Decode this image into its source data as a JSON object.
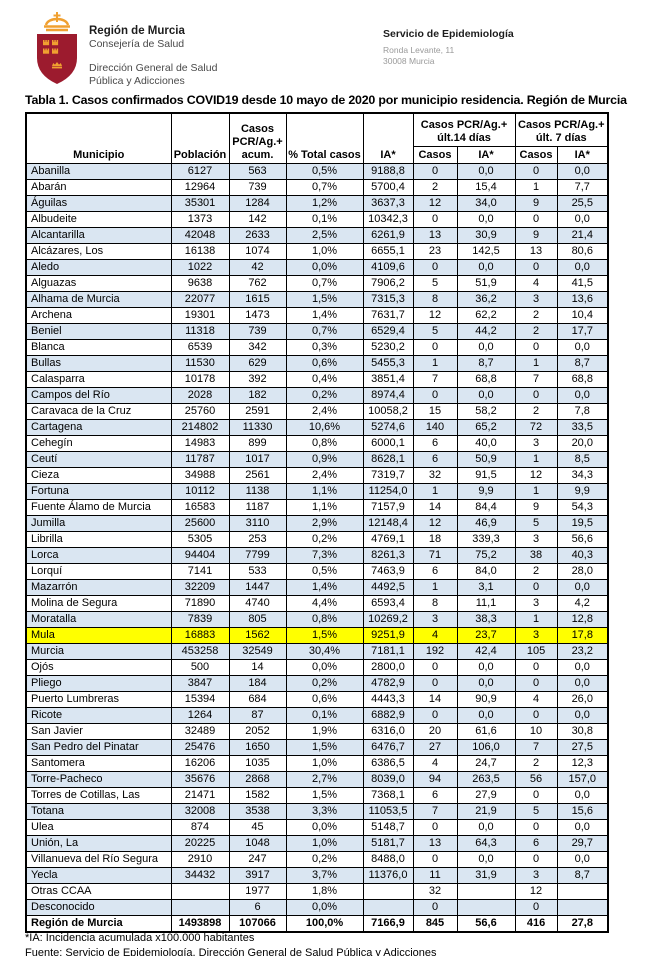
{
  "letterhead": {
    "org": {
      "name": "Región de Murcia",
      "dept": "Consejería de Salud",
      "sub1": "Dirección General de Salud",
      "sub2": "Pública y Adicciones"
    },
    "service": {
      "name": "Servicio de Epidemiología",
      "address1": "Ronda Levante, 11",
      "address2": "30008 Murcia"
    }
  },
  "title": "Tabla 1. Casos confirmados COVID19 desde 10 mayo de 2020 por municipio residencia. Región de Murcia",
  "table": {
    "col_headers": {
      "municipio": "Municipio",
      "poblacion": "Población",
      "casos_acum_l1": "Casos",
      "casos_acum_l2": "PCR/Ag.+",
      "casos_acum_l3": "acum.",
      "pct_total": "% Total casos",
      "ia": "IA*",
      "group_14": "Casos PCR/Ag.+ últ.14 días",
      "group_7": "Casos PCR/Ag.+ últ. 7 días",
      "casos": "Casos",
      "ia_sub": "IA*"
    },
    "rows": [
      [
        "Abanilla",
        "6127",
        "563",
        "0,5%",
        "9188,8",
        "0",
        "0,0",
        "0",
        "0,0"
      ],
      [
        "Abarán",
        "12964",
        "739",
        "0,7%",
        "5700,4",
        "2",
        "15,4",
        "1",
        "7,7"
      ],
      [
        "Águilas",
        "35301",
        "1284",
        "1,2%",
        "3637,3",
        "12",
        "34,0",
        "9",
        "25,5"
      ],
      [
        "Albudeite",
        "1373",
        "142",
        "0,1%",
        "10342,3",
        "0",
        "0,0",
        "0",
        "0,0"
      ],
      [
        "Alcantarilla",
        "42048",
        "2633",
        "2,5%",
        "6261,9",
        "13",
        "30,9",
        "9",
        "21,4"
      ],
      [
        "Alcázares, Los",
        "16138",
        "1074",
        "1,0%",
        "6655,1",
        "23",
        "142,5",
        "13",
        "80,6"
      ],
      [
        "Aledo",
        "1022",
        "42",
        "0,0%",
        "4109,6",
        "0",
        "0,0",
        "0",
        "0,0"
      ],
      [
        "Alguazas",
        "9638",
        "762",
        "0,7%",
        "7906,2",
        "5",
        "51,9",
        "4",
        "41,5"
      ],
      [
        "Alhama de Murcia",
        "22077",
        "1615",
        "1,5%",
        "7315,3",
        "8",
        "36,2",
        "3",
        "13,6"
      ],
      [
        "Archena",
        "19301",
        "1473",
        "1,4%",
        "7631,7",
        "12",
        "62,2",
        "2",
        "10,4"
      ],
      [
        "Beniel",
        "11318",
        "739",
        "0,7%",
        "6529,4",
        "5",
        "44,2",
        "2",
        "17,7"
      ],
      [
        "Blanca",
        "6539",
        "342",
        "0,3%",
        "5230,2",
        "0",
        "0,0",
        "0",
        "0,0"
      ],
      [
        "Bullas",
        "11530",
        "629",
        "0,6%",
        "5455,3",
        "1",
        "8,7",
        "1",
        "8,7"
      ],
      [
        "Calasparra",
        "10178",
        "392",
        "0,4%",
        "3851,4",
        "7",
        "68,8",
        "7",
        "68,8"
      ],
      [
        "Campos del Río",
        "2028",
        "182",
        "0,2%",
        "8974,4",
        "0",
        "0,0",
        "0",
        "0,0"
      ],
      [
        "Caravaca de la Cruz",
        "25760",
        "2591",
        "2,4%",
        "10058,2",
        "15",
        "58,2",
        "2",
        "7,8"
      ],
      [
        "Cartagena",
        "214802",
        "11330",
        "10,6%",
        "5274,6",
        "140",
        "65,2",
        "72",
        "33,5"
      ],
      [
        "Cehegín",
        "14983",
        "899",
        "0,8%",
        "6000,1",
        "6",
        "40,0",
        "3",
        "20,0"
      ],
      [
        "Ceutí",
        "11787",
        "1017",
        "0,9%",
        "8628,1",
        "6",
        "50,9",
        "1",
        "8,5"
      ],
      [
        "Cieza",
        "34988",
        "2561",
        "2,4%",
        "7319,7",
        "32",
        "91,5",
        "12",
        "34,3"
      ],
      [
        "Fortuna",
        "10112",
        "1138",
        "1,1%",
        "11254,0",
        "1",
        "9,9",
        "1",
        "9,9"
      ],
      [
        "Fuente Álamo de Murcia",
        "16583",
        "1187",
        "1,1%",
        "7157,9",
        "14",
        "84,4",
        "9",
        "54,3"
      ],
      [
        "Jumilla",
        "25600",
        "3110",
        "2,9%",
        "12148,4",
        "12",
        "46,9",
        "5",
        "19,5"
      ],
      [
        "Librilla",
        "5305",
        "253",
        "0,2%",
        "4769,1",
        "18",
        "339,3",
        "3",
        "56,6"
      ],
      [
        "Lorca",
        "94404",
        "7799",
        "7,3%",
        "8261,3",
        "71",
        "75,2",
        "38",
        "40,3"
      ],
      [
        "Lorquí",
        "7141",
        "533",
        "0,5%",
        "7463,9",
        "6",
        "84,0",
        "2",
        "28,0"
      ],
      [
        "Mazarrón",
        "32209",
        "1447",
        "1,4%",
        "4492,5",
        "1",
        "3,1",
        "0",
        "0,0"
      ],
      [
        "Molina de Segura",
        "71890",
        "4740",
        "4,4%",
        "6593,4",
        "8",
        "11,1",
        "3",
        "4,2"
      ],
      [
        "Moratalla",
        "7839",
        "805",
        "0,8%",
        "10269,2",
        "3",
        "38,3",
        "1",
        "12,8"
      ],
      [
        "Mula",
        "16883",
        "1562",
        "1,5%",
        "9251,9",
        "4",
        "23,7",
        "3",
        "17,8"
      ],
      [
        "Murcia",
        "453258",
        "32549",
        "30,4%",
        "7181,1",
        "192",
        "42,4",
        "105",
        "23,2"
      ],
      [
        "Ojós",
        "500",
        "14",
        "0,0%",
        "2800,0",
        "0",
        "0,0",
        "0",
        "0,0"
      ],
      [
        "Pliego",
        "3847",
        "184",
        "0,2%",
        "4782,9",
        "0",
        "0,0",
        "0",
        "0,0"
      ],
      [
        "Puerto Lumbreras",
        "15394",
        "684",
        "0,6%",
        "4443,3",
        "14",
        "90,9",
        "4",
        "26,0"
      ],
      [
        "Ricote",
        "1264",
        "87",
        "0,1%",
        "6882,9",
        "0",
        "0,0",
        "0",
        "0,0"
      ],
      [
        "San Javier",
        "32489",
        "2052",
        "1,9%",
        "6316,0",
        "20",
        "61,6",
        "10",
        "30,8"
      ],
      [
        "San Pedro del Pinatar",
        "25476",
        "1650",
        "1,5%",
        "6476,7",
        "27",
        "106,0",
        "7",
        "27,5"
      ],
      [
        "Santomera",
        "16206",
        "1035",
        "1,0%",
        "6386,5",
        "4",
        "24,7",
        "2",
        "12,3"
      ],
      [
        "Torre-Pacheco",
        "35676",
        "2868",
        "2,7%",
        "8039,0",
        "94",
        "263,5",
        "56",
        "157,0"
      ],
      [
        "Torres de Cotillas, Las",
        "21471",
        "1582",
        "1,5%",
        "7368,1",
        "6",
        "27,9",
        "0",
        "0,0"
      ],
      [
        "Totana",
        "32008",
        "3538",
        "3,3%",
        "11053,5",
        "7",
        "21,9",
        "5",
        "15,6"
      ],
      [
        "Ulea",
        "874",
        "45",
        "0,0%",
        "5148,7",
        "0",
        "0,0",
        "0",
        "0,0"
      ],
      [
        "Unión, La",
        "20225",
        "1048",
        "1,0%",
        "5181,7",
        "13",
        "64,3",
        "6",
        "29,7"
      ],
      [
        "Villanueva del Río Segura",
        "2910",
        "247",
        "0,2%",
        "8488,0",
        "0",
        "0,0",
        "0",
        "0,0"
      ],
      [
        "Yecla",
        "34432",
        "3917",
        "3,7%",
        "11376,0",
        "11",
        "31,9",
        "3",
        "8,7"
      ],
      [
        "Otras CCAA",
        "",
        "1977",
        "1,8%",
        "",
        "32",
        "",
        "12",
        ""
      ],
      [
        "Desconocido",
        "",
        "6",
        "0,0%",
        "",
        "0",
        "",
        "0",
        ""
      ]
    ],
    "highlight_index": 29,
    "total_row": [
      "Región de Murcia",
      "1493898",
      "107066",
      "100,0%",
      "7166,9",
      "845",
      "56,6",
      "416",
      "27,8"
    ]
  },
  "footnotes": {
    "ia_note": "*IA: Incidencia acumulada x100.000 habitantes",
    "source": "Fuente: Servicio de Epidemiología, Dirección General de Salud Pública y Adicciones"
  },
  "colors": {
    "row_alt": "#DAE6F2",
    "highlight": "#FFFF00",
    "crest_red": "#9C1B2E",
    "crest_gold": "#F0A030"
  }
}
